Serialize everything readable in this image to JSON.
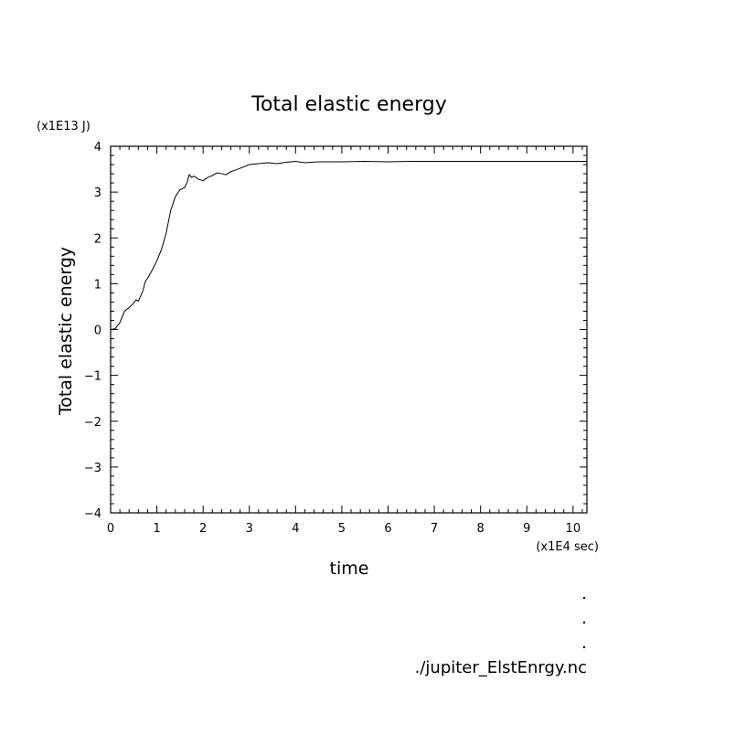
{
  "chart_data": {
    "type": "line",
    "title": "Total elastic energy",
    "xlabel": "time",
    "ylabel": "Total elastic energy",
    "x_unit": "(x1E4 sec)",
    "y_unit": "(x1E13 J)",
    "xlim": [
      0,
      10.3
    ],
    "ylim": [
      -4,
      4
    ],
    "x_ticks": [
      0,
      1,
      2,
      3,
      4,
      5,
      6,
      7,
      8,
      9,
      10
    ],
    "y_ticks": [
      -4,
      -3,
      -2,
      -1,
      0,
      1,
      2,
      3,
      4
    ],
    "grid": false,
    "series": [
      {
        "x": [
          0,
          0.1,
          0.2,
          0.3,
          0.4,
          0.5,
          0.55,
          0.6,
          0.7,
          0.75,
          0.8,
          0.9,
          1.0,
          1.1,
          1.2,
          1.3,
          1.4,
          1.5,
          1.6,
          1.65,
          1.7,
          1.75,
          1.8,
          1.9,
          2.0,
          2.1,
          2.2,
          2.3,
          2.4,
          2.5,
          2.6,
          2.7,
          2.8,
          2.9,
          3.0,
          3.2,
          3.4,
          3.6,
          3.8,
          4.0,
          4.2,
          4.5,
          5.0,
          5.5,
          6.0,
          6.5,
          7.0,
          8.0,
          9.0,
          10.3
        ],
        "y": [
          0.0,
          0.02,
          0.15,
          0.4,
          0.48,
          0.58,
          0.65,
          0.62,
          0.85,
          1.05,
          1.12,
          1.3,
          1.5,
          1.75,
          2.1,
          2.6,
          2.9,
          3.05,
          3.1,
          3.2,
          3.38,
          3.32,
          3.35,
          3.28,
          3.25,
          3.32,
          3.36,
          3.42,
          3.4,
          3.38,
          3.45,
          3.48,
          3.52,
          3.56,
          3.6,
          3.62,
          3.64,
          3.62,
          3.65,
          3.67,
          3.64,
          3.66,
          3.66,
          3.67,
          3.66,
          3.67,
          3.67,
          3.67,
          3.67,
          3.67
        ]
      }
    ]
  },
  "footer": {
    "filename": "./jupiter_ElstEnrgy.nc"
  }
}
